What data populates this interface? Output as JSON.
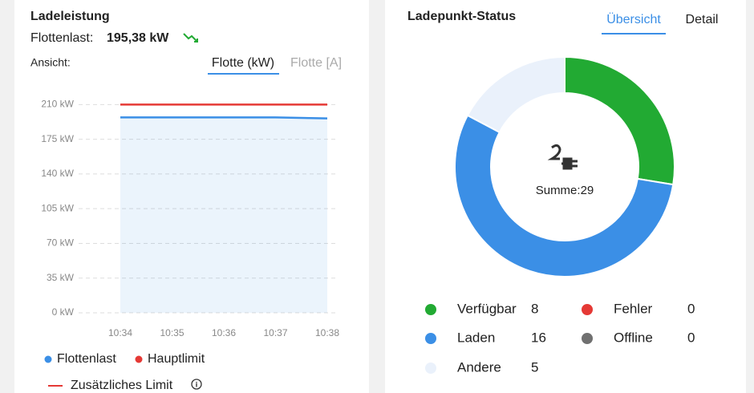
{
  "chart_data": [
    {
      "type": "line",
      "title": "Ladeleistung",
      "fleet_load_label": "Flottenlast:",
      "fleet_load": "195,38 kW",
      "view_label": "Ansicht:",
      "tabs": [
        "Flotte (kW)",
        "Flotte [A]"
      ],
      "x": [
        "10:34",
        "10:35",
        "10:36",
        "10:37",
        "10:38"
      ],
      "series": [
        {
          "name": "Flottenlast",
          "color": "#3b8fe6",
          "values": [
            197,
            197,
            197,
            197,
            196
          ]
        },
        {
          "name": "Hauptlimit",
          "color": "#e53935",
          "values": [
            210,
            210,
            210,
            210,
            210
          ]
        },
        {
          "name": "Zusätzliches Limit",
          "color": "#e53935",
          "values": [
            null,
            null,
            null,
            null,
            null
          ]
        }
      ],
      "ylim": [
        0,
        220
      ],
      "yticks": [
        {
          "value": 0,
          "label": "0 kW"
        },
        {
          "value": 35,
          "label": "35 kW"
        },
        {
          "value": 70,
          "label": "70 kW"
        },
        {
          "value": 105,
          "label": "105 kW"
        },
        {
          "value": 140,
          "label": "140 kW"
        },
        {
          "value": 175,
          "label": "175 kW"
        },
        {
          "value": 210,
          "label": "210 kW"
        }
      ],
      "grid": true
    },
    {
      "type": "donut",
      "title": "Ladepunkt-Status",
      "tabs": [
        "Übersicht",
        "Detail"
      ],
      "center_label": "Summe:29",
      "categories": [
        "Verfügbar",
        "Laden",
        "Andere",
        "Fehler",
        "Offline"
      ],
      "values": [
        8,
        16,
        5,
        0,
        0
      ],
      "colors": [
        "#22aa33",
        "#3b8fe6",
        "#eaf1fb",
        "#e53935",
        "#707070"
      ]
    }
  ]
}
